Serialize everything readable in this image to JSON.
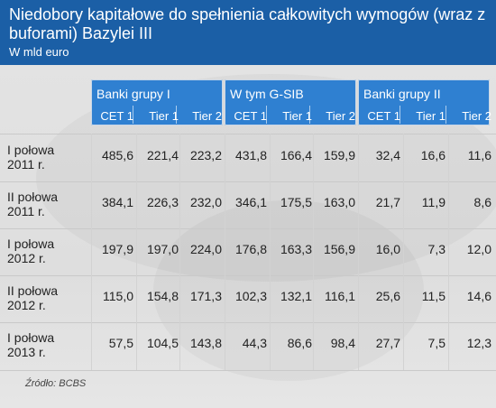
{
  "header": {
    "title": "Niedobory kapitałowe do spełnienia całkowitych wymogów (wraz z buforami) Bazylei III",
    "subtitle": "W mld euro"
  },
  "chart_data": {
    "type": "table",
    "title": "Niedobory kapitałowe do spełnienia całkowitych wymogów (wraz z buforami) Bazylei III",
    "subtitle": "W mld euro",
    "groups": [
      {
        "name": "Banki grupy I",
        "columns": [
          "CET 1",
          "Tier 1",
          "Tier 2"
        ]
      },
      {
        "name": "W tym G-SIB",
        "columns": [
          "CET 1",
          "Tier 1",
          "Tier 2"
        ]
      },
      {
        "name": "Banki grupy II",
        "columns": [
          "CET 1",
          "Tier 1",
          "Tier 2"
        ]
      }
    ],
    "rows": [
      {
        "label": [
          "I połowa",
          "2011 r."
        ],
        "values": [
          "485,6",
          "221,4",
          "223,2",
          "431,8",
          "166,4",
          "159,9",
          "32,4",
          "16,6",
          "11,6"
        ]
      },
      {
        "label": [
          "II połowa",
          "2011 r."
        ],
        "values": [
          "384,1",
          "226,3",
          "232,0",
          "346,1",
          "175,5",
          "163,0",
          "21,7",
          "11,9",
          "8,6"
        ]
      },
      {
        "label": [
          "I połowa",
          "2012 r."
        ],
        "values": [
          "197,9",
          "197,0",
          "224,0",
          "176,8",
          "163,3",
          "156,9",
          "16,0",
          "7,3",
          "12,0"
        ]
      },
      {
        "label": [
          "II połowa",
          "2012 r."
        ],
        "values": [
          "115,0",
          "154,8",
          "171,3",
          "102,3",
          "132,1",
          "116,1",
          "25,6",
          "11,5",
          "14,6"
        ]
      },
      {
        "label": [
          "I połowa",
          "2013 r."
        ],
        "values": [
          "57,5",
          "104,5",
          "143,8",
          "44,3",
          "86,6",
          "98,4",
          "27,7",
          "7,5",
          "12,3"
        ]
      }
    ],
    "source": "Źródło: BCBS"
  },
  "colors": {
    "header_bg": "#1b5fa6",
    "group_header_bg": "#2f80d1",
    "text": "#222222"
  }
}
